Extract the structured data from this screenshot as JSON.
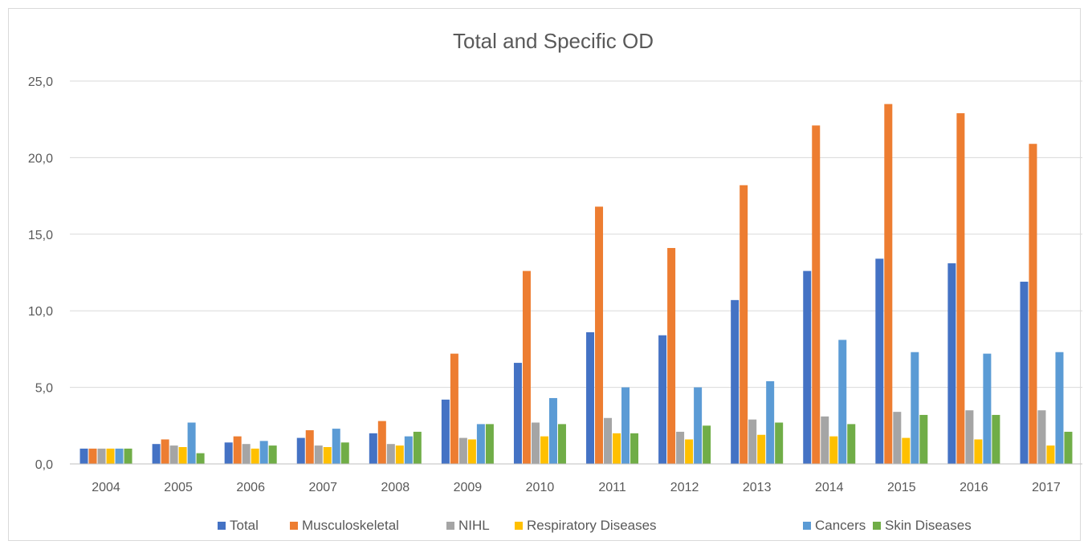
{
  "chart_data": {
    "type": "bar",
    "title": "Total and Specific OD",
    "xlabel": "",
    "ylabel": "",
    "ylim": [
      0,
      25
    ],
    "y_ticks": [
      "0,0",
      "5,0",
      "10,0",
      "15,0",
      "20,0",
      "25,0"
    ],
    "y_tick_values": [
      0,
      5,
      10,
      15,
      20,
      25
    ],
    "grid": true,
    "legend_position": "bottom",
    "categories": [
      "2004",
      "2005",
      "2006",
      "2007",
      "2008",
      "2009",
      "2010",
      "2011",
      "2012",
      "2013",
      "2014",
      "2015",
      "2016",
      "2017"
    ],
    "series": [
      {
        "name": "Total",
        "color": "#4472C4",
        "values": [
          1.0,
          1.3,
          1.4,
          1.7,
          2.0,
          4.2,
          6.6,
          8.6,
          8.4,
          10.7,
          12.6,
          13.4,
          13.1,
          11.9
        ]
      },
      {
        "name": "Musculoskeletal",
        "color": "#ED7D31",
        "values": [
          1.0,
          1.6,
          1.8,
          2.2,
          2.8,
          7.2,
          12.6,
          16.8,
          14.1,
          18.2,
          22.1,
          23.5,
          22.9,
          20.9
        ]
      },
      {
        "name": "NIHL",
        "color": "#A5A5A5",
        "values": [
          1.0,
          1.2,
          1.3,
          1.2,
          1.3,
          1.7,
          2.7,
          3.0,
          2.1,
          2.9,
          3.1,
          3.4,
          3.5,
          3.5
        ]
      },
      {
        "name": "Respiratory Diseases",
        "color": "#FFC000",
        "values": [
          1.0,
          1.1,
          1.0,
          1.1,
          1.2,
          1.6,
          1.8,
          2.0,
          1.6,
          1.9,
          1.8,
          1.7,
          1.6,
          1.2
        ]
      },
      {
        "name": "Cancers",
        "color": "#5B9BD5",
        "values": [
          1.0,
          2.7,
          1.5,
          2.3,
          1.8,
          2.6,
          4.3,
          5.0,
          5.0,
          5.4,
          8.1,
          7.3,
          7.2,
          7.3
        ]
      },
      {
        "name": "Skin Diseases",
        "color": "#70AD47",
        "values": [
          1.0,
          0.7,
          1.2,
          1.4,
          2.1,
          2.6,
          2.6,
          2.0,
          2.5,
          2.7,
          2.6,
          3.2,
          3.2,
          2.1
        ]
      }
    ]
  }
}
